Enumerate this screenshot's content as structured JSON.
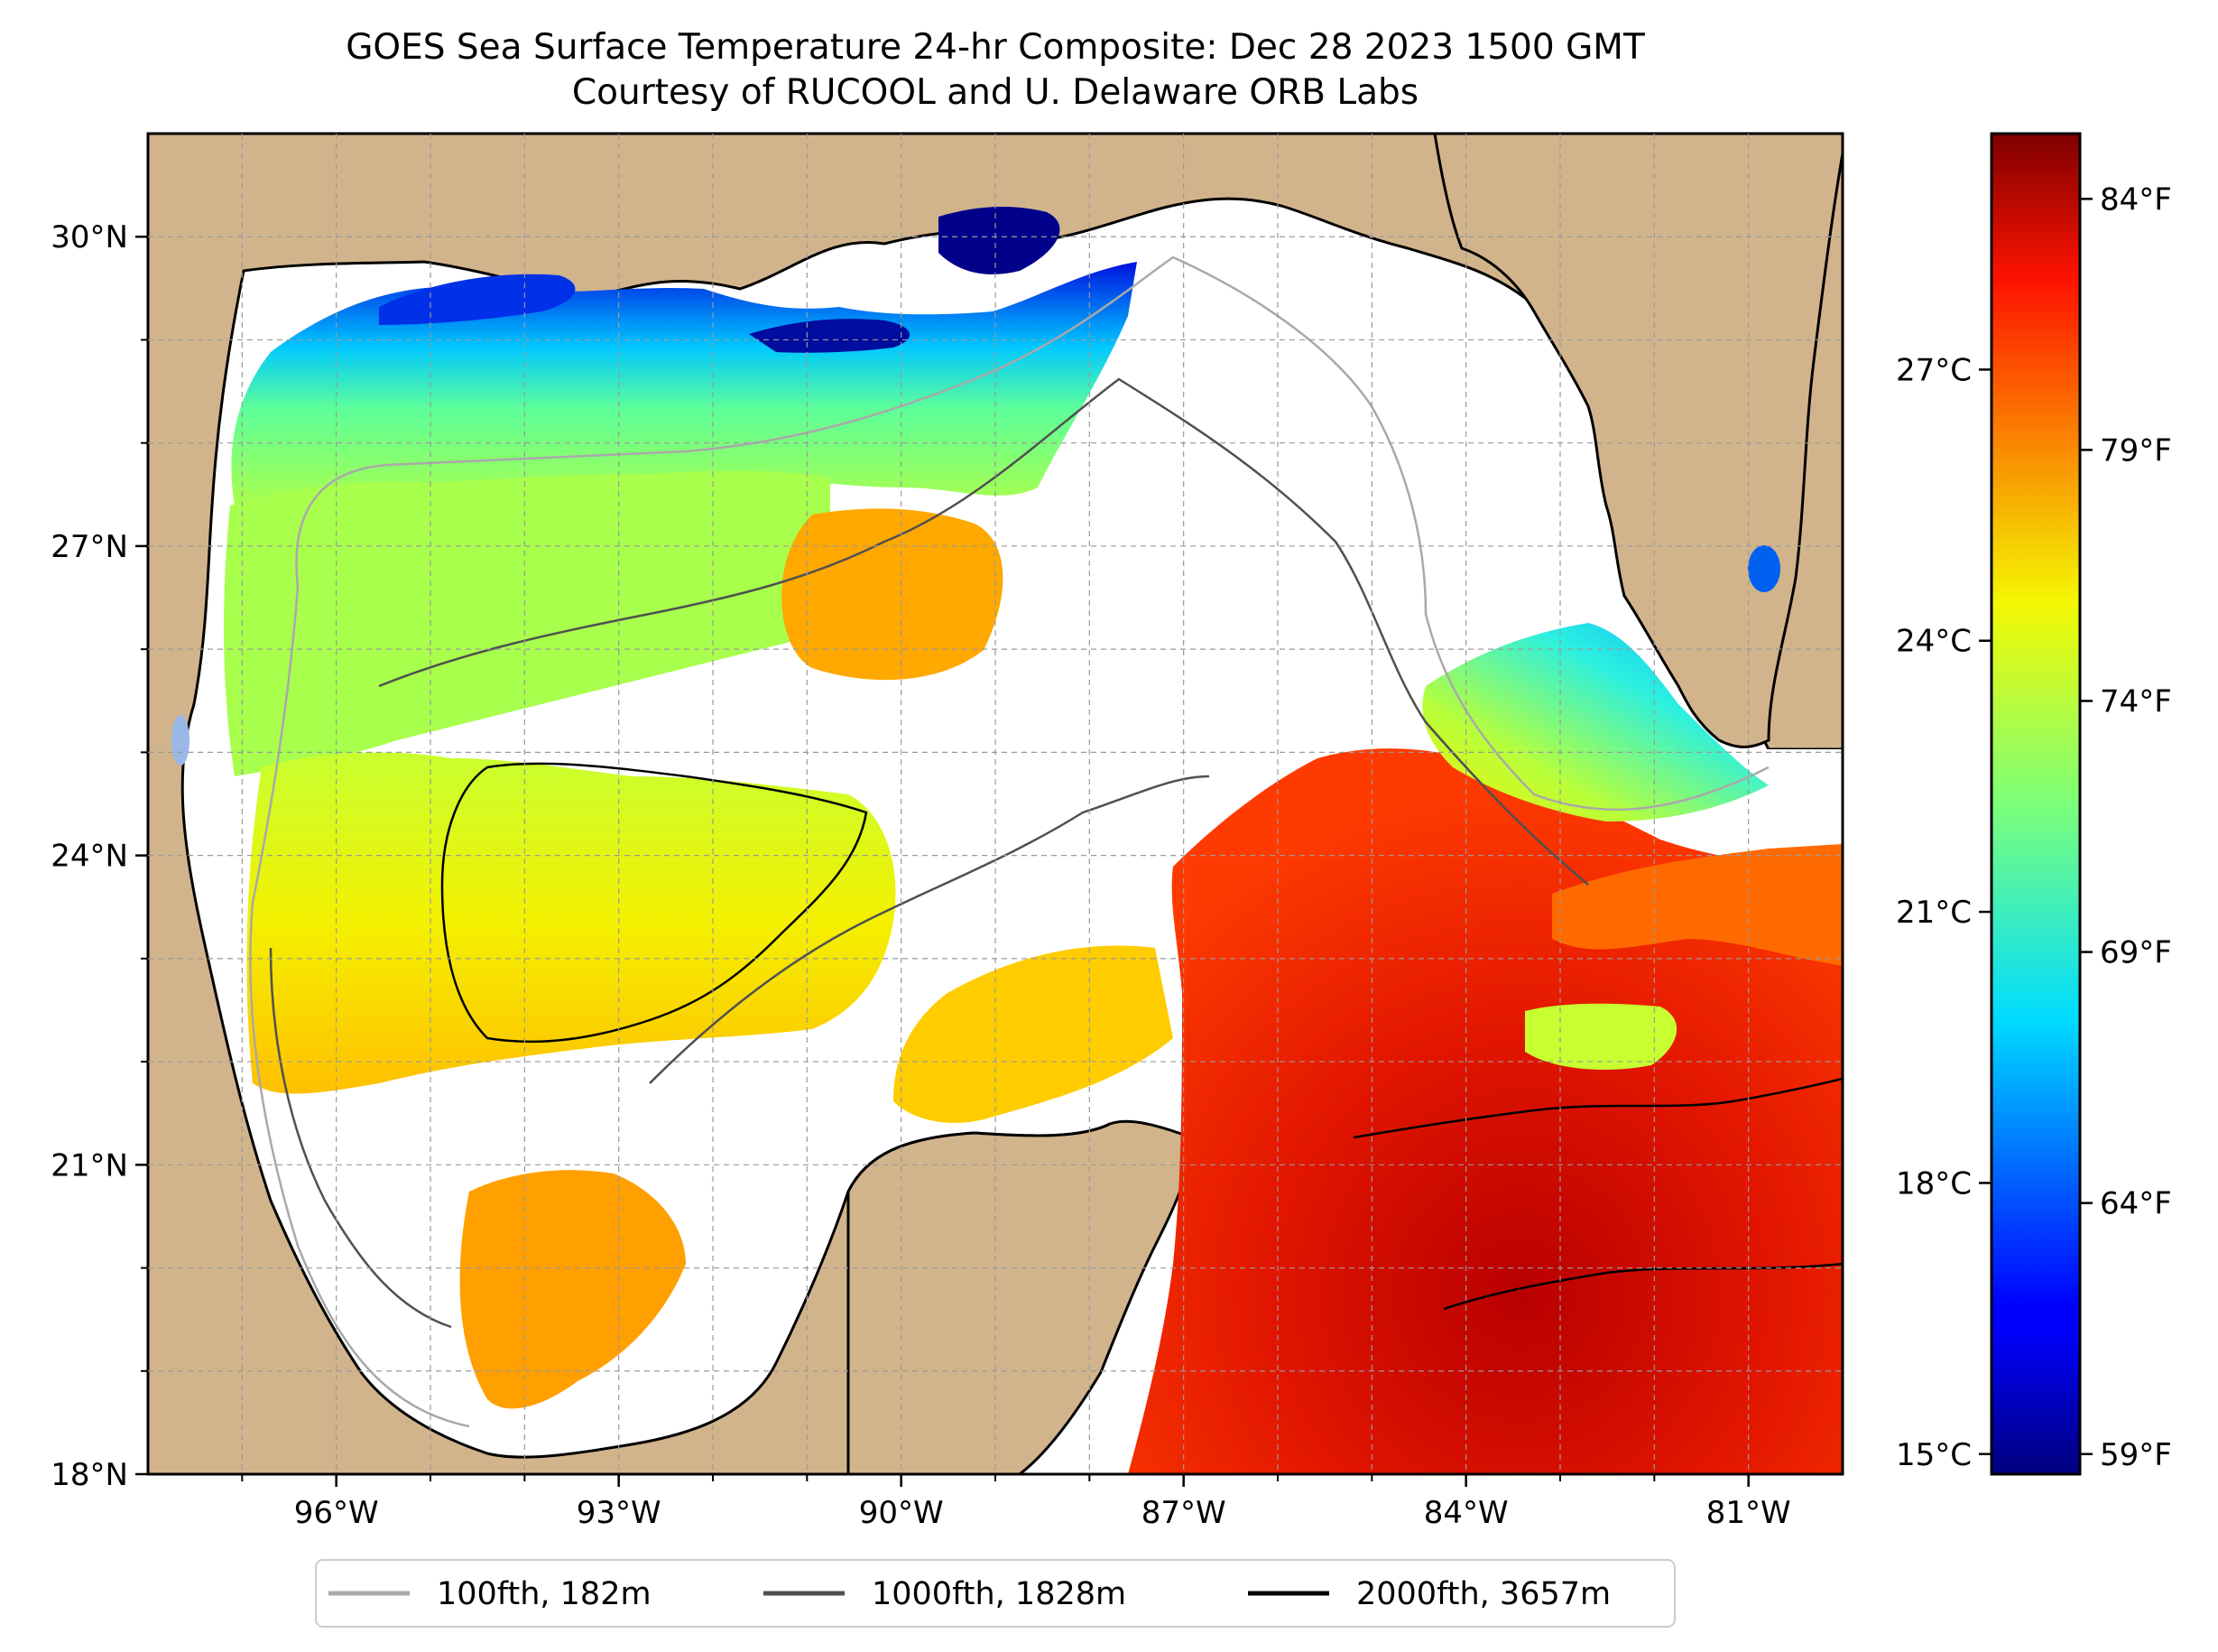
{
  "title": {
    "line1": "GOES Sea Surface Temperature 24-hr Composite: Dec 28 2023 1500 GMT",
    "line2": "Courtesy of RUCOOL and U. Delaware ORB Labs"
  },
  "map": {
    "lon_range": [
      -98,
      -80
    ],
    "lat_range": [
      18,
      31
    ],
    "lon_ticks": [
      {
        "value": -96,
        "label": "96°W"
      },
      {
        "value": -93,
        "label": "93°W"
      },
      {
        "value": -90,
        "label": "90°W"
      },
      {
        "value": -87,
        "label": "87°W"
      },
      {
        "value": -84,
        "label": "84°W"
      },
      {
        "value": -81,
        "label": "81°W"
      }
    ],
    "lat_ticks": [
      {
        "value": 18,
        "label": "18°N"
      },
      {
        "value": 21,
        "label": "21°N"
      },
      {
        "value": 24,
        "label": "24°N"
      },
      {
        "value": 27,
        "label": "27°N"
      },
      {
        "value": 30,
        "label": "30°N"
      }
    ],
    "grid": true,
    "land_color": "#d2b48c",
    "water_color": "#ffffff",
    "lake_color": "#9bb8e6"
  },
  "colorbar": {
    "colormap": "jet",
    "celsius_ticks": [
      {
        "value": 15,
        "label": "15°C"
      },
      {
        "value": 18,
        "label": "18°C"
      },
      {
        "value": 21,
        "label": "21°C"
      },
      {
        "value": 24,
        "label": "24°C"
      },
      {
        "value": 27,
        "label": "27°C"
      }
    ],
    "fahrenheit_ticks": [
      {
        "value": 59,
        "label": "59°F"
      },
      {
        "value": 64,
        "label": "64°F"
      },
      {
        "value": 69,
        "label": "69°F"
      },
      {
        "value": 74,
        "label": "74°F"
      },
      {
        "value": 79,
        "label": "79°F"
      },
      {
        "value": 84,
        "label": "84°F"
      }
    ],
    "range_f": [
      58.6,
      85.3
    ]
  },
  "legend": {
    "placement": "bottom-center",
    "items": [
      {
        "label": "100fth, 182m",
        "color": "#a9a9a9"
      },
      {
        "label": "1000fth, 1828m",
        "color": "#505050"
      },
      {
        "label": "2000fth, 3657m",
        "color": "#000000"
      }
    ]
  }
}
